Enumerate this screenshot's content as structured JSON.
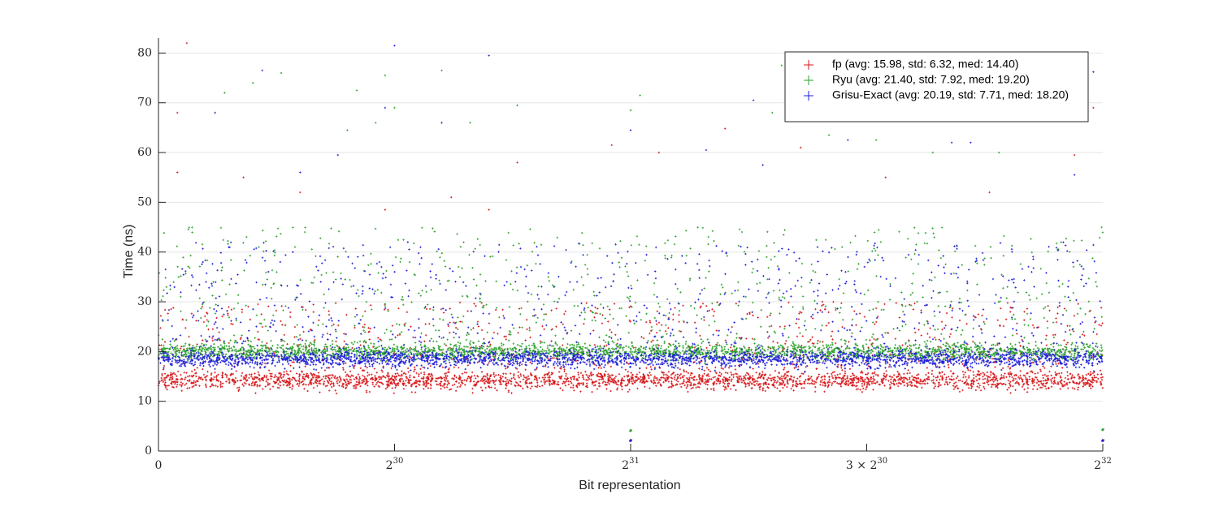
{
  "chart_data": {
    "type": "scatter",
    "xlabel": "Bit representation",
    "ylabel": "Time (ns)",
    "xlim": [
      0,
      4294967296
    ],
    "ylim": [
      0,
      83
    ],
    "grid": "horizontal",
    "legend_position": "top-right",
    "x_ticks": [
      {
        "value": 0,
        "base": "0",
        "exp": ""
      },
      {
        "value": 1073741824,
        "base": "2",
        "exp": "30"
      },
      {
        "value": 2147483648,
        "base": "2",
        "exp": "31"
      },
      {
        "value": 3221225472,
        "base": "3 × 2",
        "exp": "30"
      },
      {
        "value": 4294967296,
        "base": "2",
        "exp": "32"
      }
    ],
    "y_ticks": [
      0,
      10,
      20,
      30,
      40,
      50,
      60,
      70,
      80
    ],
    "series": [
      {
        "name": "fp (avg: 15.98, std: 6.32, med: 14.40)",
        "color": "#d7191c",
        "band": [
          12.0,
          16.5
        ],
        "spread": [
          16.5,
          30
        ],
        "edge_values": [
          2.0,
          2.0
        ],
        "outliers": [
          [
            0.03,
            82.0
          ],
          [
            0.02,
            68.0
          ],
          [
            0.02,
            56.0
          ],
          [
            0.09,
            55.0
          ],
          [
            0.24,
            48.5
          ],
          [
            0.31,
            51.0
          ],
          [
            0.35,
            48.5
          ],
          [
            0.48,
            61.5
          ],
          [
            0.6,
            64.8
          ],
          [
            0.88,
            52.0
          ],
          [
            0.99,
            69.0
          ],
          [
            0.97,
            59.5
          ],
          [
            0.53,
            60.0
          ],
          [
            0.68,
            61.0
          ],
          [
            0.38,
            58.0
          ],
          [
            0.15,
            52.0
          ],
          [
            0.77,
            55.0
          ]
        ]
      },
      {
        "name": "Ryu (avg: 21.40, std: 7.92, med: 19.20)",
        "color": "#2ca02c",
        "band": [
          18.0,
          22.0
        ],
        "spread": [
          22,
          45
        ],
        "edge_values": [
          4.0,
          4.2
        ],
        "outliers": [
          [
            0.1,
            74.0
          ],
          [
            0.13,
            76.0
          ],
          [
            0.21,
            72.5
          ],
          [
            0.24,
            75.5
          ],
          [
            0.3,
            76.5
          ],
          [
            0.07,
            72.0
          ],
          [
            0.25,
            69.0
          ],
          [
            0.5,
            68.5
          ],
          [
            0.51,
            71.5
          ],
          [
            0.66,
            77.5
          ],
          [
            0.67,
            71.5
          ],
          [
            0.76,
            62.5
          ],
          [
            0.2,
            64.5
          ],
          [
            0.23,
            66.0
          ],
          [
            0.33,
            66.0
          ],
          [
            0.38,
            69.5
          ],
          [
            0.65,
            68.0
          ],
          [
            0.71,
            63.5
          ],
          [
            0.82,
            60.0
          ],
          [
            0.89,
            60.0
          ]
        ]
      },
      {
        "name": "Grisu-Exact (avg: 20.19, std: 7.71, med: 18.20)",
        "color": "#1f1fd9",
        "band": [
          16.5,
          20.5
        ],
        "spread": [
          20.5,
          42
        ],
        "edge_values": [
          2.0,
          2.0
        ],
        "outliers": [
          [
            0.25,
            81.5
          ],
          [
            0.35,
            79.5
          ],
          [
            0.11,
            76.5
          ],
          [
            0.06,
            68.0
          ],
          [
            0.24,
            69.0
          ],
          [
            0.3,
            66.0
          ],
          [
            0.5,
            64.5
          ],
          [
            0.58,
            60.5
          ],
          [
            0.63,
            70.5
          ],
          [
            0.99,
            76.2
          ],
          [
            0.64,
            57.5
          ],
          [
            0.73,
            62.5
          ],
          [
            0.84,
            62.0
          ],
          [
            0.86,
            62.0
          ],
          [
            0.97,
            55.5
          ],
          [
            0.19,
            59.5
          ],
          [
            0.15,
            56.0
          ]
        ]
      }
    ]
  }
}
